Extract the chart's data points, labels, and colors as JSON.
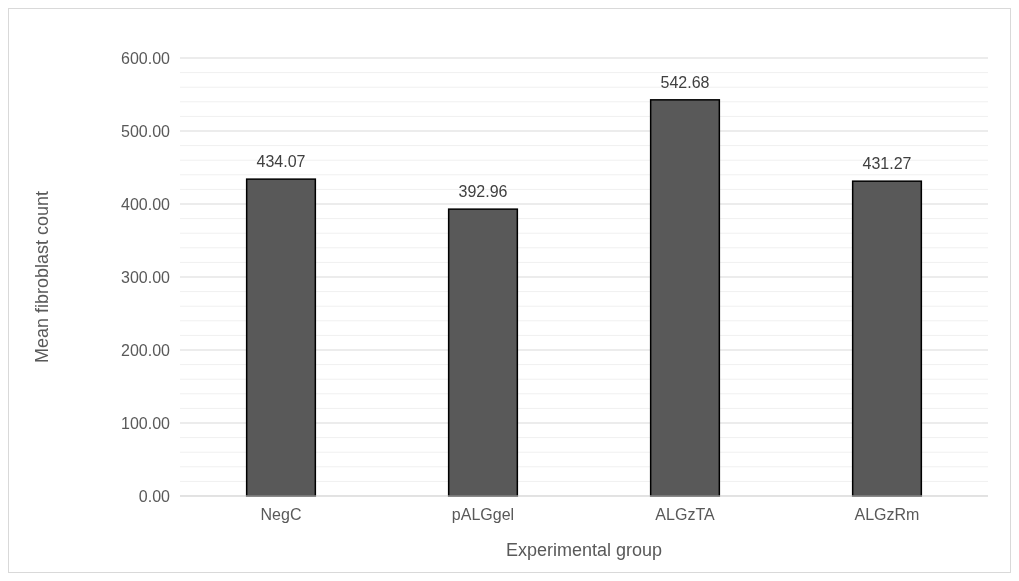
{
  "chart_data": {
    "type": "bar",
    "xlabel": "Experimental group",
    "ylabel": "Mean fibroblast count",
    "categories": [
      "NegC",
      "pALGgel",
      "ALGzTA",
      "ALGzRm"
    ],
    "values": [
      434.07,
      392.96,
      542.68,
      431.27
    ],
    "color": "#595959",
    "data_labels": true,
    "grid": true,
    "ylim": [
      0,
      600
    ],
    "yticks": [
      {
        "value": 0,
        "label": "0.00"
      },
      {
        "value": 20,
        "label": null
      },
      {
        "value": 40,
        "label": null
      },
      {
        "value": 60,
        "label": null
      },
      {
        "value": 80,
        "label": null
      },
      {
        "value": 100,
        "label": "100.00"
      },
      {
        "value": 120,
        "label": null
      },
      {
        "value": 140,
        "label": null
      },
      {
        "value": 160,
        "label": null
      },
      {
        "value": 180,
        "label": null
      },
      {
        "value": 200,
        "label": "200.00"
      },
      {
        "value": 220,
        "label": null
      },
      {
        "value": 240,
        "label": null
      },
      {
        "value": 260,
        "label": null
      },
      {
        "value": 280,
        "label": null
      },
      {
        "value": 300,
        "label": "300.00"
      },
      {
        "value": 320,
        "label": null
      },
      {
        "value": 340,
        "label": null
      },
      {
        "value": 360,
        "label": null
      },
      {
        "value": 380,
        "label": null
      },
      {
        "value": 400,
        "label": "400.00"
      },
      {
        "value": 420,
        "label": null
      },
      {
        "value": 440,
        "label": null
      },
      {
        "value": 460,
        "label": null
      },
      {
        "value": 480,
        "label": null
      },
      {
        "value": 500,
        "label": "500.00"
      },
      {
        "value": 520,
        "label": null
      },
      {
        "value": 540,
        "label": null
      },
      {
        "value": 560,
        "label": null
      },
      {
        "value": 580,
        "label": null
      },
      {
        "value": 600,
        "label": "600.00"
      }
    ]
  }
}
